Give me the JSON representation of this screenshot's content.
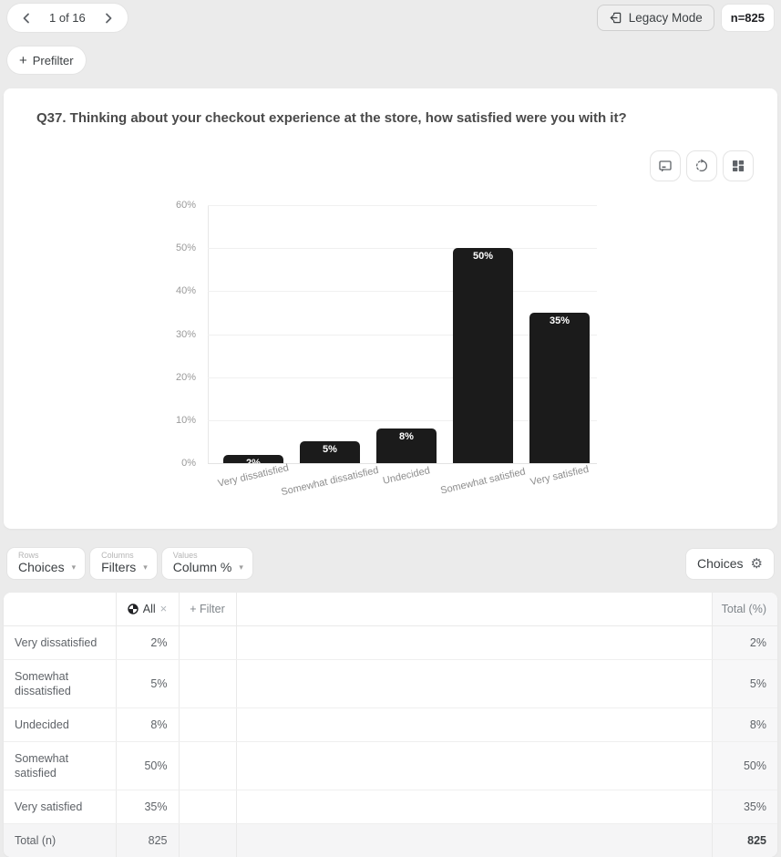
{
  "topbar": {
    "pager_label": "1 of 16",
    "legacy_mode_label": "Legacy Mode",
    "n_badge": "n=825",
    "prefilter_label": "Prefilter",
    "prefilter_plus": "+"
  },
  "chart_card": {
    "title": "Q37. Thinking about your checkout experience at the store, how satisfied were you with it?",
    "toolbar_icons": [
      "comment-icon",
      "refresh-icon",
      "layout-grid-icon"
    ]
  },
  "chart_data": {
    "type": "bar",
    "title": "",
    "xlabel": "",
    "ylabel": "",
    "categories": [
      "Very dissatisfied",
      "Somewhat dissatisfied",
      "Undecided",
      "Somewhat satisfied",
      "Very satisfied"
    ],
    "values": [
      2,
      5,
      8,
      50,
      35
    ],
    "value_labels": [
      "2%",
      "5%",
      "8%",
      "50%",
      "35%"
    ],
    "y_ticks": [
      "60%",
      "50%",
      "40%",
      "30%",
      "20%",
      "10%",
      "0%"
    ],
    "ylim": [
      0,
      60
    ],
    "grid": true,
    "legend": false,
    "bar_color": "#1b1b1b",
    "value_label_color": "#ffffff"
  },
  "controls": {
    "rows": {
      "label": "Rows",
      "value": "Choices"
    },
    "columns": {
      "label": "Columns",
      "value": "Filters"
    },
    "values": {
      "label": "Values",
      "value": "Column %"
    },
    "caret": "▾",
    "choices_button_label": "Choices",
    "gear": "⚙"
  },
  "table": {
    "header": {
      "all_label": "All",
      "all_close": "×",
      "filter_label": "+ Filter",
      "total_label": "Total (%)"
    },
    "rows": [
      {
        "label": "Very dissatisfied",
        "all": "2%",
        "total": "2%",
        "is_total": false
      },
      {
        "label": "Somewhat dissatisfied",
        "all": "5%",
        "total": "5%",
        "is_total": false
      },
      {
        "label": "Undecided",
        "all": "8%",
        "total": "8%",
        "is_total": false
      },
      {
        "label": "Somewhat satisfied",
        "all": "50%",
        "total": "50%",
        "is_total": false
      },
      {
        "label": "Very satisfied",
        "all": "35%",
        "total": "35%",
        "is_total": false
      },
      {
        "label": "Total (n)",
        "all": "825",
        "total": "825",
        "is_total": true
      }
    ]
  }
}
